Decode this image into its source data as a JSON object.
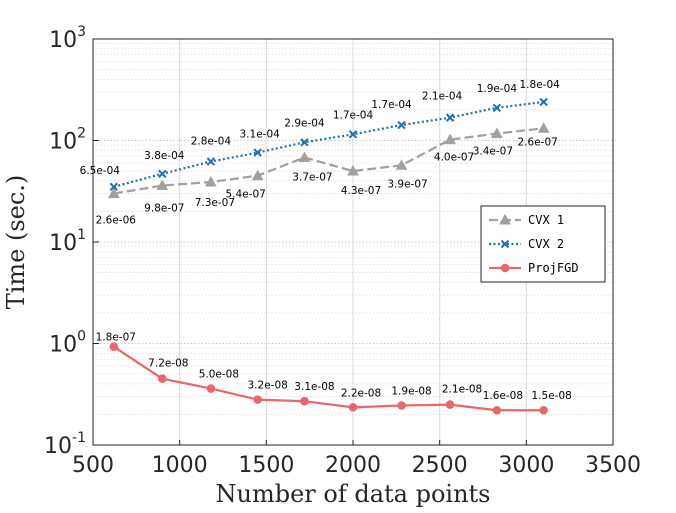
{
  "chart_data": {
    "type": "line",
    "xlabel": "Number of data points",
    "ylabel": "Time (sec.)",
    "xlim": [
      500,
      3500
    ],
    "ylim": [
      0.1,
      1000
    ],
    "yscale": "log",
    "grid": true,
    "legend_position": "right",
    "xticks": [
      "500",
      "1000",
      "1500",
      "2000",
      "2500",
      "3000",
      "3500"
    ],
    "yticks": [
      {
        "base": "10",
        "exp": "-1",
        "value": 0.1
      },
      {
        "base": "10",
        "exp": "0",
        "value": 1
      },
      {
        "base": "10",
        "exp": "1",
        "value": 10
      },
      {
        "base": "10",
        "exp": "2",
        "value": 100
      },
      {
        "base": "10",
        "exp": "3",
        "value": 1000
      }
    ],
    "x": [
      620,
      900,
      1180,
      1450,
      1720,
      2000,
      2280,
      2560,
      2830,
      3100
    ],
    "series": [
      {
        "name": "CVX 1",
        "color": "#a0a0a0",
        "dash": "dashed",
        "marker": "triangle",
        "values": [
          30,
          36,
          39,
          45,
          68,
          50,
          57,
          102,
          117,
          132
        ],
        "labels": [
          "2.6e-06",
          "9.8e-07",
          "7.3e-07",
          "5.4e-07",
          "3.7e-07",
          "4.3e-07",
          "3.9e-07",
          "4.0e-07",
          "3.4e-07",
          "2.6e-07"
        ]
      },
      {
        "name": "CVX 2",
        "color": "#1f6eb5",
        "dash": "dotted",
        "marker": "x",
        "values": [
          35,
          47,
          62,
          76,
          96,
          115,
          142,
          168,
          210,
          240
        ],
        "labels": [
          "6.5e-04",
          "3.8e-04",
          "2.8e-04",
          "3.1e-04",
          "2.9e-04",
          "1.7e-04",
          "1.7e-04",
          "2.1e-04",
          "1.9e-04",
          "1.8e-04"
        ]
      },
      {
        "name": "ProjFGD",
        "color": "#e8676a",
        "dash": "solid",
        "marker": "circle",
        "values": [
          0.93,
          0.45,
          0.36,
          0.28,
          0.27,
          0.235,
          0.245,
          0.25,
          0.22,
          0.22
        ],
        "labels": [
          "1.8e-07",
          "7.2e-08",
          "5.0e-08",
          "3.2e-08",
          "3.1e-08",
          "2.2e-08",
          "1.9e-08",
          "2.1e-08",
          "1.6e-08",
          "1.5e-08"
        ]
      }
    ]
  }
}
